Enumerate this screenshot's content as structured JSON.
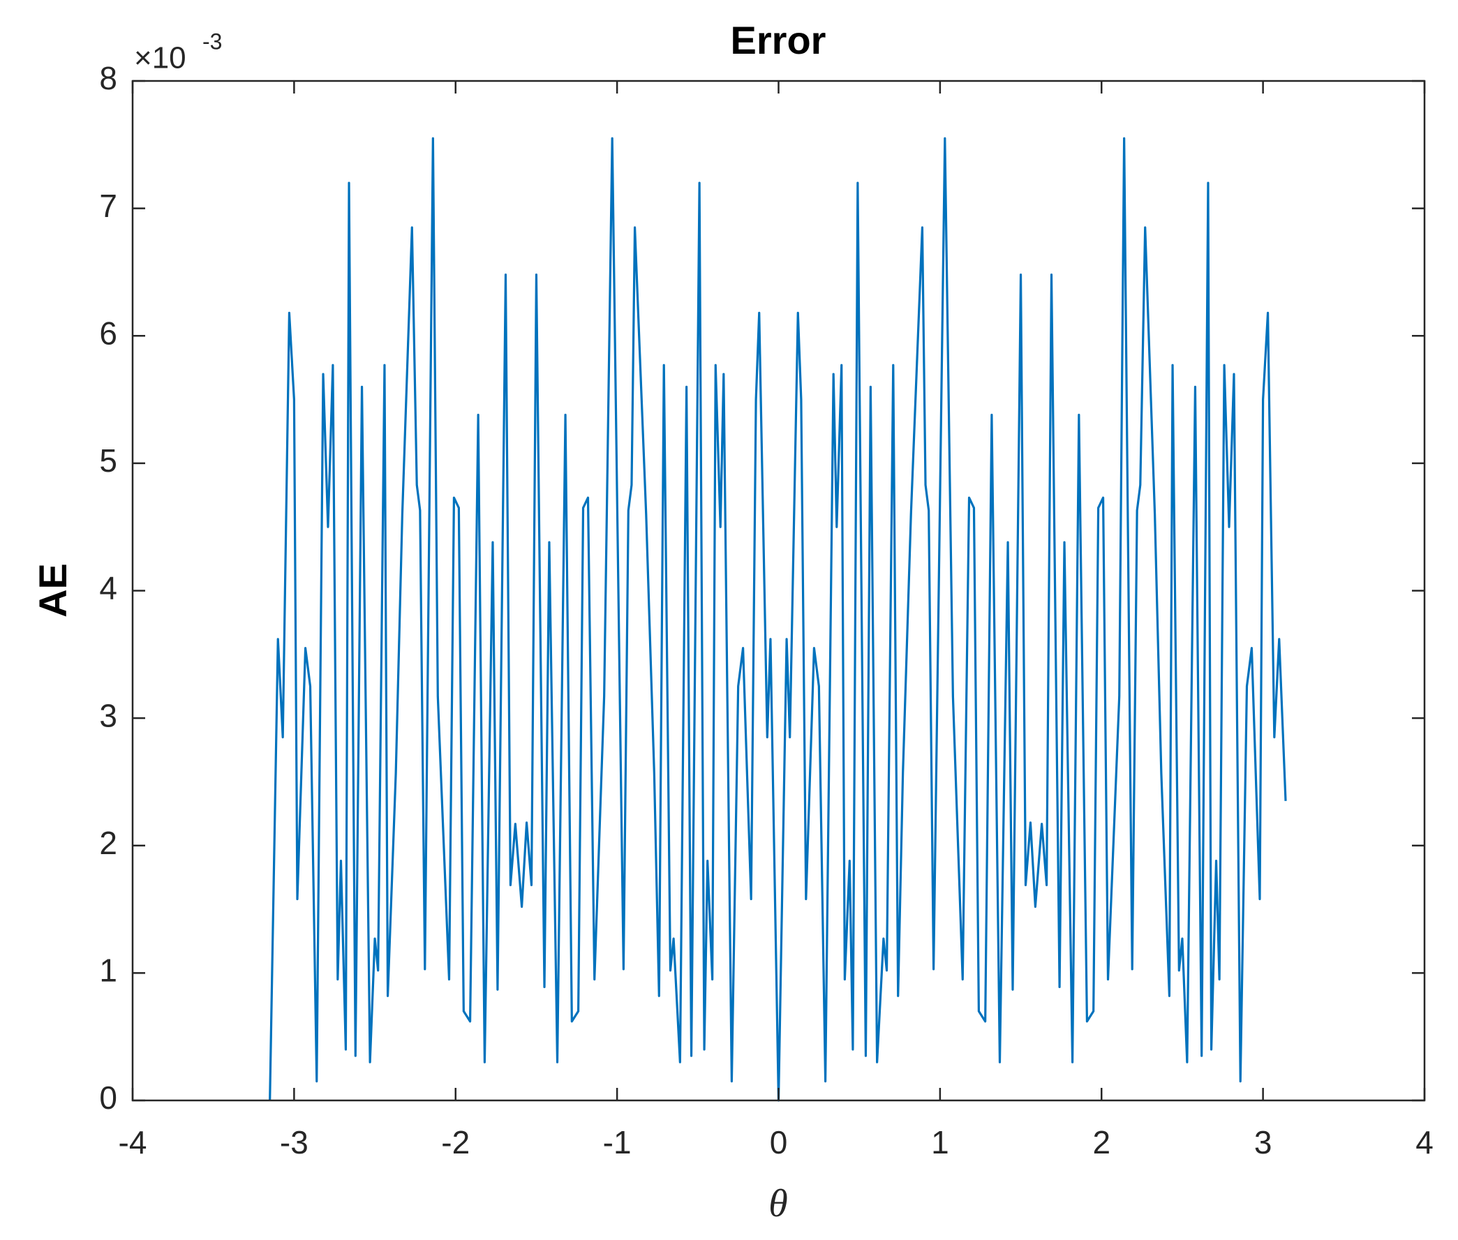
{
  "chart_data": {
    "type": "line",
    "title": "Error",
    "x_label": "θ",
    "y_label": "AE",
    "multiplier": {
      "base": "×10",
      "exponent": "-3"
    },
    "color": "#0072bd",
    "xlim": [
      -4,
      4
    ],
    "xticks": [
      -4,
      -3,
      -2,
      -1,
      0,
      1,
      2,
      3,
      4
    ],
    "ylim": [
      0,
      8
    ],
    "yticks": [
      0,
      1,
      2,
      3,
      4,
      5,
      6,
      7,
      8
    ],
    "grid": false,
    "x": [
      -3.15,
      -3.1,
      -3.07,
      -3.03,
      -3.0,
      -2.98,
      -2.93,
      -2.9,
      -2.86,
      -2.82,
      -2.79,
      -2.76,
      -2.73,
      -2.71,
      -2.68,
      -2.66,
      -2.62,
      -2.58,
      -2.53,
      -2.5,
      -2.48,
      -2.44,
      -2.42,
      -2.37,
      -2.33,
      -2.27,
      -2.24,
      -2.22,
      -2.19,
      -2.14,
      -2.11,
      -2.04,
      -2.01,
      -1.98,
      -1.95,
      -1.91,
      -1.86,
      -1.82,
      -1.77,
      -1.74,
      -1.69,
      -1.66,
      -1.63,
      -1.59,
      -1.56,
      -1.53,
      -1.5,
      -1.45,
      -1.42,
      -1.37,
      -1.32,
      -1.28,
      -1.24,
      -1.21,
      -1.18,
      -1.14,
      -1.08,
      -1.03,
      -0.96,
      -0.93,
      -0.91,
      -0.89,
      -0.82,
      -0.77,
      -0.74,
      -0.71,
      -0.67,
      -0.65,
      -0.61,
      -0.57,
      -0.54,
      -0.49,
      -0.46,
      -0.44,
      -0.41,
      -0.39,
      -0.36,
      -0.34,
      -0.29,
      -0.25,
      -0.22,
      -0.17,
      -0.14,
      -0.12,
      -0.07,
      -0.05,
      0,
      0.05,
      0.07,
      0.12,
      0.14,
      0.17,
      0.22,
      0.25,
      0.29,
      0.34,
      0.36,
      0.39,
      0.41,
      0.44,
      0.46,
      0.49,
      0.54,
      0.57,
      0.61,
      0.65,
      0.67,
      0.71,
      0.74,
      0.77,
      0.82,
      0.89,
      0.91,
      0.93,
      0.96,
      1.03,
      1.08,
      1.14,
      1.18,
      1.21,
      1.24,
      1.28,
      1.32,
      1.37,
      1.42,
      1.45,
      1.5,
      1.53,
      1.56,
      1.59,
      1.63,
      1.66,
      1.69,
      1.74,
      1.77,
      1.82,
      1.86,
      1.91,
      1.95,
      1.98,
      2.01,
      2.04,
      2.11,
      2.14,
      2.19,
      2.22,
      2.24,
      2.27,
      2.33,
      2.37,
      2.42,
      2.44,
      2.48,
      2.5,
      2.53,
      2.58,
      2.62,
      2.66,
      2.68,
      2.71,
      2.73,
      2.76,
      2.79,
      2.82,
      2.86,
      2.9,
      2.93,
      2.98,
      3.0,
      3.03,
      3.07,
      3.1,
      3.14
    ],
    "values": [
      0,
      3.62,
      2.85,
      6.18,
      5.5,
      1.58,
      3.55,
      3.25,
      0.15,
      5.7,
      4.5,
      5.77,
      0.95,
      1.88,
      0.4,
      7.2,
      0.35,
      5.6,
      0.3,
      1.27,
      1.02,
      5.77,
      0.82,
      2.57,
      4.6,
      6.85,
      4.83,
      4.63,
      1.03,
      7.55,
      3.17,
      0.95,
      4.73,
      4.65,
      0.7,
      0.62,
      5.38,
      0.3,
      4.38,
      0.87,
      6.48,
      1.69,
      2.17,
      1.52,
      2.18,
      1.69,
      6.48,
      0.89,
      4.38,
      0.3,
      5.38,
      0.62,
      0.7,
      4.65,
      4.73,
      0.95,
      3.17,
      7.55,
      1.03,
      4.63,
      4.83,
      6.85,
      4.6,
      2.57,
      0.82,
      5.77,
      1.02,
      1.27,
      0.3,
      5.6,
      0.35,
      7.2,
      0.4,
      1.88,
      0.95,
      5.77,
      4.5,
      5.7,
      0.15,
      3.25,
      3.55,
      1.58,
      5.5,
      6.18,
      2.85,
      3.62,
      0,
      3.62,
      2.85,
      6.18,
      5.5,
      1.58,
      3.55,
      3.25,
      0.15,
      5.7,
      4.5,
      5.77,
      0.95,
      1.88,
      0.4,
      7.2,
      0.35,
      5.6,
      0.3,
      1.27,
      1.02,
      5.77,
      0.82,
      2.57,
      4.6,
      6.85,
      4.83,
      4.63,
      1.03,
      7.55,
      3.17,
      0.95,
      4.73,
      4.65,
      0.7,
      0.62,
      5.38,
      0.3,
      4.38,
      0.87,
      6.48,
      1.69,
      2.18,
      1.52,
      2.17,
      1.69,
      6.48,
      0.89,
      4.38,
      0.3,
      5.38,
      0.62,
      0.7,
      4.65,
      4.73,
      0.95,
      3.17,
      7.55,
      1.03,
      4.63,
      4.83,
      6.85,
      4.6,
      2.57,
      0.82,
      5.77,
      1.02,
      1.27,
      0.3,
      5.6,
      0.35,
      7.2,
      0.4,
      1.88,
      0.95,
      5.77,
      4.5,
      5.7,
      0.15,
      3.25,
      3.55,
      1.58,
      5.5,
      6.18,
      2.85,
      3.62,
      2.35
    ]
  }
}
